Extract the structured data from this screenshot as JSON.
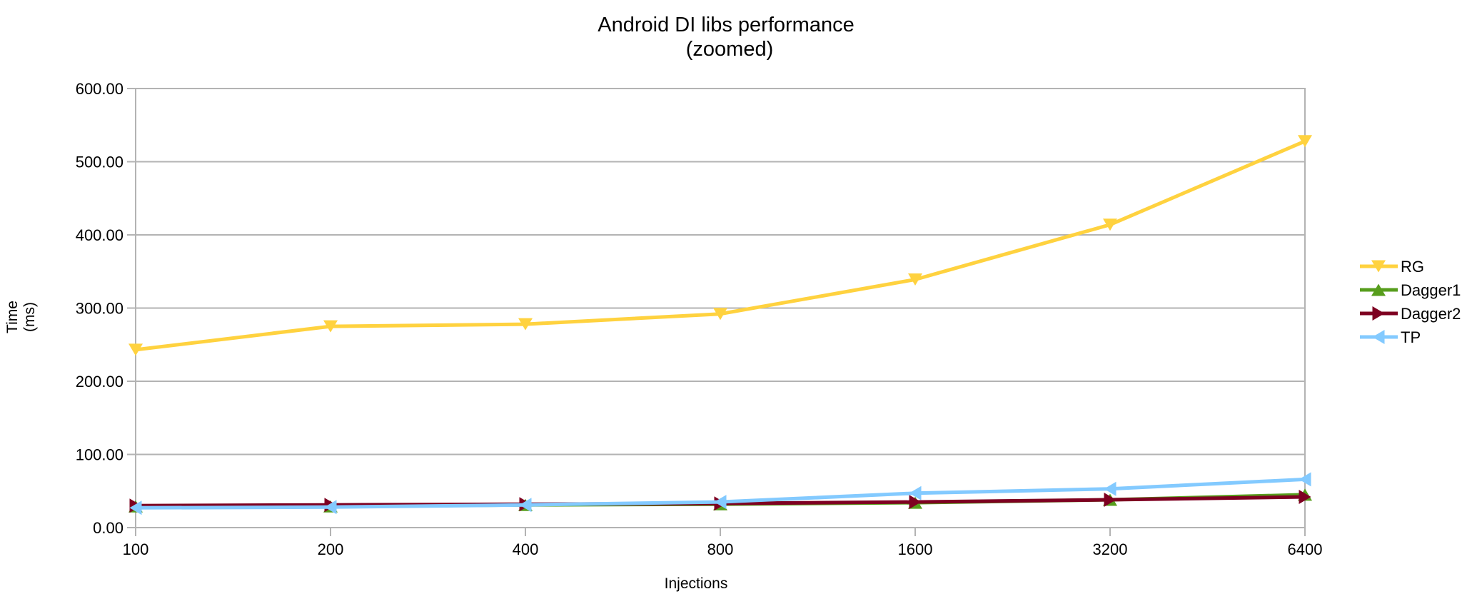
{
  "chart_data": {
    "type": "line",
    "title": "Android DI libs performance",
    "subtitle": "(zoomed)",
    "xlabel": "Injections",
    "ylabel": "Time",
    "ylabel_unit": "(ms)",
    "categories": [
      "100",
      "200",
      "400",
      "800",
      "1600",
      "3200",
      "6400"
    ],
    "ylim": [
      0,
      600
    ],
    "yticks": [
      "0.00",
      "100.00",
      "200.00",
      "300.00",
      "400.00",
      "500.00",
      "600.00"
    ],
    "grid": true,
    "legend_position": "right",
    "series": [
      {
        "name": "RG",
        "color": "#ffd23f",
        "marker": "triangle-down",
        "values": [
          243,
          275,
          278,
          292,
          339,
          414,
          528
        ]
      },
      {
        "name": "Dagger1",
        "color": "#579d1c",
        "marker": "triangle-up",
        "values": [
          29,
          29,
          31,
          32,
          34,
          38,
          45
        ]
      },
      {
        "name": "Dagger2",
        "color": "#7e0021",
        "marker": "triangle-right",
        "values": [
          30,
          31,
          32,
          33,
          35,
          38,
          42
        ]
      },
      {
        "name": "TP",
        "color": "#83caff",
        "marker": "triangle-left",
        "values": [
          27,
          28,
          31,
          35,
          47,
          53,
          66
        ]
      }
    ]
  }
}
